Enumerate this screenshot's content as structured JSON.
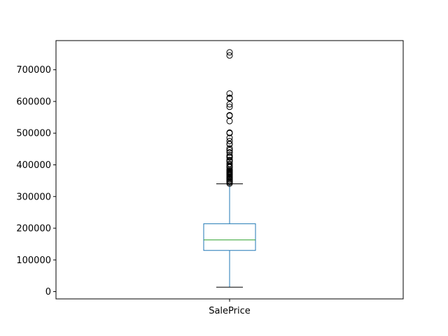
{
  "chart_data": {
    "type": "box",
    "categories": [
      "SalePrice"
    ],
    "series": [
      {
        "whisker_low": 14000,
        "q1": 129900,
        "median": 163000,
        "q3": 214000,
        "whisker_high": 340000,
        "outliers": [
          755000,
          745000,
          625000,
          611657,
          610000,
          591000,
          582933,
          556581,
          555000,
          538000,
          501837,
          500000,
          485000,
          475000,
          466500,
          465000,
          451950,
          446261,
          440000,
          438780,
          430000,
          426000,
          423000,
          415298,
          412500,
          410000,
          402861,
          402000,
          395192,
          394617,
          392500,
          392000,
          385000,
          383970,
          381000,
          380000,
          378500,
          377500,
          377426,
          375000,
          374000,
          372500,
          372402,
          370878,
          369900,
          367294,
          363000,
          361919,
          360000,
          359100,
          355000,
          354000,
          350000,
          348000,
          345000,
          341000
        ]
      }
    ],
    "yticks": [
      0,
      100000,
      200000,
      300000,
      400000,
      500000,
      600000,
      700000
    ],
    "ylim": [
      -23050,
      792050
    ],
    "colors": {
      "box": "#1f77b4",
      "median": "#2ca02c",
      "whisker": "#1f77b4",
      "cap": "#000000",
      "outlier": "#000000"
    }
  }
}
